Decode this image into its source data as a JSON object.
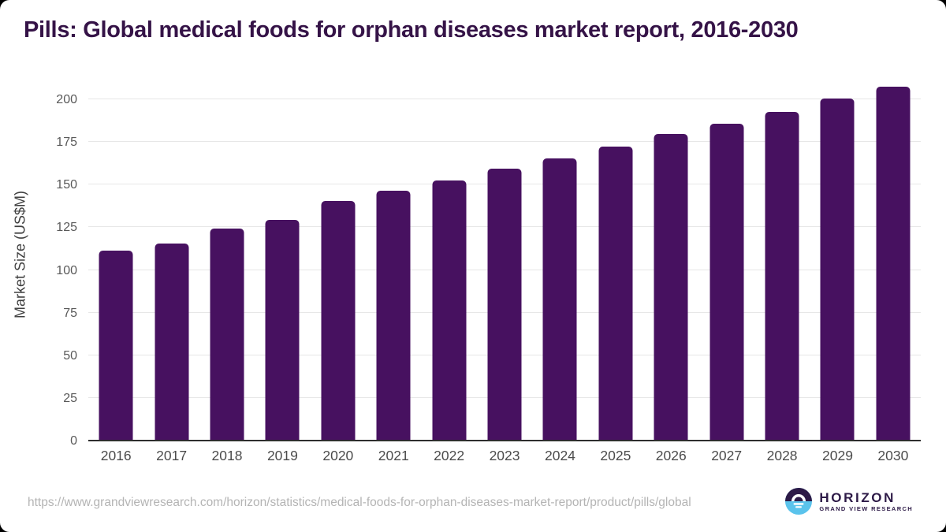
{
  "chart_data": {
    "type": "bar",
    "title": "Pills: Global medical foods for orphan diseases market report, 2016-2030",
    "xlabel": "",
    "ylabel": "Market Size (US$M)",
    "categories": [
      "2016",
      "2017",
      "2018",
      "2019",
      "2020",
      "2021",
      "2022",
      "2023",
      "2024",
      "2025",
      "2026",
      "2027",
      "2028",
      "2029",
      "2030"
    ],
    "values": [
      111,
      115,
      124,
      129,
      140,
      146,
      152,
      159,
      165,
      172,
      179,
      185,
      192,
      200,
      207
    ],
    "yticks": [
      0,
      25,
      50,
      75,
      100,
      125,
      150,
      175,
      200
    ],
    "ylim": [
      0,
      200
    ],
    "grid": true,
    "legend_position": "none",
    "bar_color": "#471160"
  },
  "colors": {
    "title": "#351347",
    "bar": "#471160",
    "gridline": "#e7e7e7",
    "axis": "#2e2e2e",
    "ytick": "#595959",
    "xtick": "#4b4b4b",
    "url": "#b4b4b4",
    "logo_dark": "#2d1a47",
    "logo_blue": "#5ac3ec"
  },
  "footer": {
    "source_url": "https://www.grandviewresearch.com/horizon/statistics/medical-foods-for-orphan-diseases-market-report/product/pills/global",
    "logo": {
      "title": "HORIZON",
      "subtitle": "GRAND VIEW RESEARCH"
    }
  }
}
